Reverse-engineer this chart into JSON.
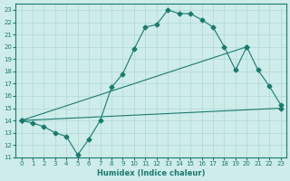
{
  "xlabel": "Humidex (Indice chaleur)",
  "xlim": [
    -0.5,
    23.5
  ],
  "ylim": [
    11,
    23.5
  ],
  "xticks": [
    0,
    1,
    2,
    3,
    4,
    5,
    6,
    7,
    8,
    9,
    10,
    11,
    12,
    13,
    14,
    15,
    16,
    17,
    18,
    19,
    20,
    21,
    22,
    23
  ],
  "yticks": [
    11,
    12,
    13,
    14,
    15,
    16,
    17,
    18,
    19,
    20,
    21,
    22,
    23
  ],
  "bg_color": "#ceecea",
  "line_color": "#1a7a6e",
  "grid_color": "#aed8d5",
  "lines": [
    {
      "x": [
        0,
        1,
        2,
        3,
        4,
        5,
        6,
        7,
        8,
        9,
        10,
        11,
        12,
        13,
        14,
        15,
        16,
        17,
        18,
        19,
        20,
        21,
        22,
        23
      ],
      "y": [
        14,
        13.8,
        13.5,
        13.0,
        12.7,
        11.2,
        12.5,
        14.0,
        16.7,
        17.8,
        19.8,
        21.6,
        21.8,
        23.0,
        22.7,
        22.7,
        22.2,
        21.6,
        20.0,
        18.1,
        20.0,
        18.1,
        16.8,
        15.3
      ]
    },
    {
      "x": [
        0,
        20
      ],
      "y": [
        14,
        20.0
      ]
    },
    {
      "x": [
        0,
        23
      ],
      "y": [
        14,
        15.0
      ]
    }
  ],
  "line1_marker_x": [
    0,
    1,
    2,
    3,
    4,
    5,
    6,
    7,
    8,
    9,
    10,
    11,
    12,
    13,
    14,
    15,
    16,
    17,
    18,
    19,
    20,
    21,
    22,
    23
  ],
  "line1_marker_y": [
    14,
    13.8,
    13.5,
    13.0,
    12.7,
    11.2,
    12.5,
    14.0,
    16.7,
    17.8,
    19.8,
    21.6,
    21.8,
    23.0,
    22.7,
    22.7,
    22.2,
    21.6,
    20.0,
    18.1,
    20.0,
    18.1,
    16.8,
    15.3
  ],
  "marker": "D",
  "markersize": 2.5
}
